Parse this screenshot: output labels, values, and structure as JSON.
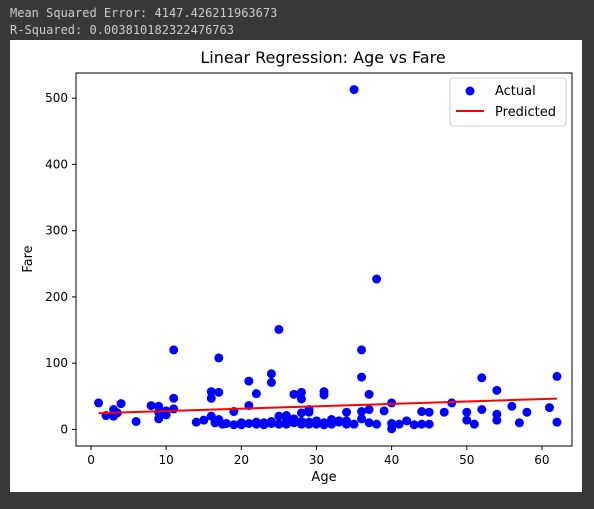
{
  "console": {
    "mse_line": "Mean Squared Error: 4147.426211963673",
    "r2_line": "R-Squared: 0.003810182322476763"
  },
  "colors": {
    "actual": "#0000ff",
    "predicted": "#ff0000",
    "background": "#383838",
    "figure": "#ffffff"
  },
  "chart_data": {
    "type": "scatter",
    "title": "Linear Regression: Age vs Fare",
    "xlabel": "Age",
    "ylabel": "Fare",
    "xlim": [
      -2,
      64
    ],
    "ylim": [
      -25,
      538
    ],
    "xticks": [
      0,
      10,
      20,
      30,
      40,
      50,
      60
    ],
    "yticks": [
      0,
      100,
      200,
      300,
      400,
      500
    ],
    "grid": false,
    "legend_position": "top-right",
    "series": [
      {
        "name": "Actual",
        "kind": "scatter",
        "color": "#0000ff",
        "points": [
          [
            1,
            40
          ],
          [
            2,
            21
          ],
          [
            3,
            30
          ],
          [
            3,
            20
          ],
          [
            3.5,
            25
          ],
          [
            4,
            39
          ],
          [
            6,
            12
          ],
          [
            8,
            36
          ],
          [
            9,
            35
          ],
          [
            9,
            26
          ],
          [
            9,
            16
          ],
          [
            10,
            22
          ],
          [
            10,
            28
          ],
          [
            11,
            120
          ],
          [
            11,
            47
          ],
          [
            11,
            31
          ],
          [
            14,
            11
          ],
          [
            15,
            14
          ],
          [
            16,
            20
          ],
          [
            16,
            57
          ],
          [
            16,
            47
          ],
          [
            16.5,
            10
          ],
          [
            17,
            108
          ],
          [
            17,
            56
          ],
          [
            17,
            15
          ],
          [
            17.5,
            8
          ],
          [
            18,
            9
          ],
          [
            19,
            7
          ],
          [
            19,
            27
          ],
          [
            20,
            7
          ],
          [
            20,
            10
          ],
          [
            21,
            73
          ],
          [
            21,
            36
          ],
          [
            21,
            9
          ],
          [
            22,
            54
          ],
          [
            22,
            11
          ],
          [
            22,
            8
          ],
          [
            23,
            7
          ],
          [
            23,
            10
          ],
          [
            24,
            84
          ],
          [
            24,
            71
          ],
          [
            24,
            12
          ],
          [
            24,
            9
          ],
          [
            25,
            151
          ],
          [
            25,
            8
          ],
          [
            25,
            20
          ],
          [
            26,
            21
          ],
          [
            26,
            13
          ],
          [
            26,
            10
          ],
          [
            26,
            8
          ],
          [
            27,
            53
          ],
          [
            27,
            16
          ],
          [
            27,
            10
          ],
          [
            28,
            56
          ],
          [
            28,
            46
          ],
          [
            28,
            25
          ],
          [
            28,
            12
          ],
          [
            28,
            8
          ],
          [
            29,
            30
          ],
          [
            29,
            26
          ],
          [
            29,
            11
          ],
          [
            29,
            8
          ],
          [
            30,
            13
          ],
          [
            30,
            8
          ],
          [
            31,
            57
          ],
          [
            31,
            52
          ],
          [
            31,
            10
          ],
          [
            31,
            7
          ],
          [
            32,
            15
          ],
          [
            32,
            8
          ],
          [
            33,
            13
          ],
          [
            33,
            11
          ],
          [
            34,
            26
          ],
          [
            34,
            13
          ],
          [
            34,
            8
          ],
          [
            35,
            513
          ],
          [
            35,
            8
          ],
          [
            36,
            120
          ],
          [
            36,
            79
          ],
          [
            36,
            27
          ],
          [
            36,
            16
          ],
          [
            37,
            53
          ],
          [
            37,
            30
          ],
          [
            37,
            10
          ],
          [
            38,
            227
          ],
          [
            38,
            8
          ],
          [
            39,
            28
          ],
          [
            40,
            40
          ],
          [
            40,
            9
          ],
          [
            40,
            1
          ],
          [
            41,
            8
          ],
          [
            42,
            13
          ],
          [
            43,
            7
          ],
          [
            44,
            27
          ],
          [
            44,
            8
          ],
          [
            45,
            26
          ],
          [
            45,
            8
          ],
          [
            47,
            26
          ],
          [
            48,
            40
          ],
          [
            50,
            26
          ],
          [
            50,
            14
          ],
          [
            51,
            8
          ],
          [
            52,
            78
          ],
          [
            52,
            30
          ],
          [
            54,
            59
          ],
          [
            54,
            23
          ],
          [
            54,
            14
          ],
          [
            56,
            35
          ],
          [
            57,
            10
          ],
          [
            58,
            26
          ],
          [
            61,
            33
          ],
          [
            62,
            80
          ],
          [
            62,
            11
          ]
        ]
      },
      {
        "name": "Predicted",
        "kind": "line",
        "color": "#ff0000",
        "x": [
          1,
          62
        ],
        "y": [
          24.5,
          46.5
        ]
      }
    ]
  }
}
